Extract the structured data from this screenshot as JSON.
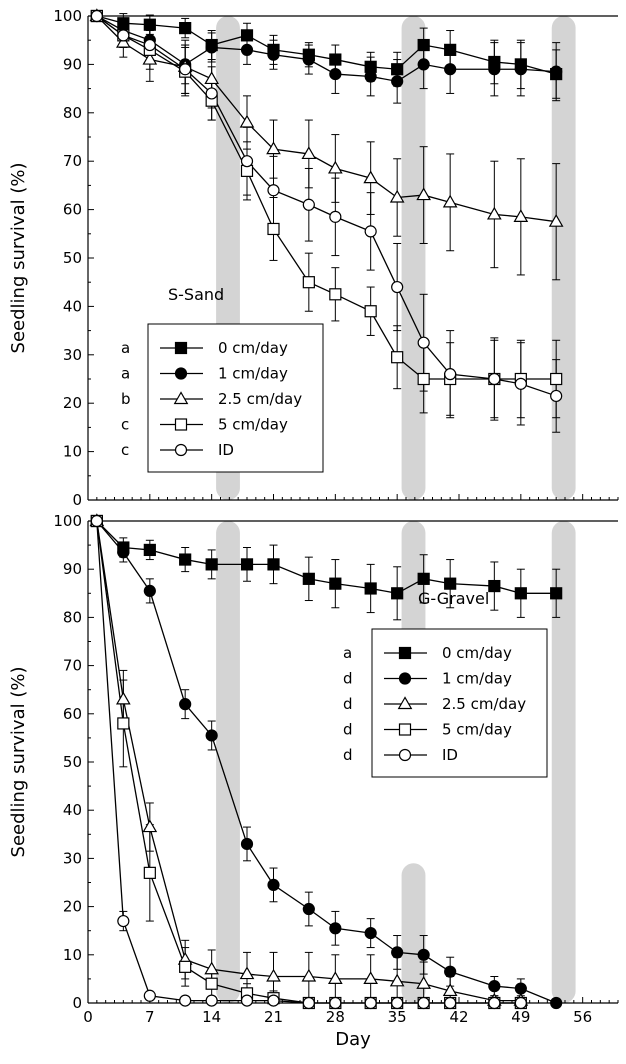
{
  "chart_data": [
    {
      "type": "line",
      "panel_label": "S-Sand",
      "ylabel": "Seedling survival (%)",
      "xlabel": "",
      "xlim": [
        0,
        60
      ],
      "ylim": [
        0,
        100
      ],
      "xticks": [
        0,
        7,
        14,
        21,
        28,
        35,
        42,
        49,
        56
      ],
      "yticks": [
        0,
        10,
        20,
        30,
        40,
        50,
        60,
        70,
        80,
        90,
        100
      ],
      "show_x_tick_labels": false,
      "shaded_periods": [
        {
          "x0": 14.5,
          "x1": 17.2,
          "y0": 0,
          "y1": 100
        },
        {
          "x0": 35.5,
          "x1": 38.2,
          "y0": 0,
          "y1": 100
        },
        {
          "x0": 52.5,
          "x1": 55.2,
          "y0": 0,
          "y1": 100
        }
      ],
      "legend_position": "lower-left",
      "series": [
        {
          "name": "0 cm/day",
          "letter": "a",
          "marker": "square",
          "fill": "#000000",
          "x": [
            1,
            4,
            7,
            11,
            14,
            18,
            21,
            25,
            28,
            32,
            35,
            38,
            41,
            46,
            49,
            53
          ],
          "y": [
            100,
            98.5,
            98.2,
            97.5,
            94,
            96,
            93,
            92,
            91,
            89.5,
            89,
            94,
            93,
            90.5,
            90,
            88
          ],
          "err": [
            0.5,
            2,
            2,
            2,
            3,
            2.5,
            3,
            2.5,
            3,
            3,
            3.5,
            3.5,
            4,
            4.5,
            5,
            5
          ]
        },
        {
          "name": "1 cm/day",
          "letter": "a",
          "marker": "circle",
          "fill": "#000000",
          "x": [
            1,
            4,
            7,
            11,
            14,
            18,
            21,
            25,
            28,
            32,
            35,
            38,
            41,
            46,
            49,
            53
          ],
          "y": [
            100,
            97,
            95,
            90,
            93.5,
            93,
            92,
            91,
            88,
            87.5,
            86.5,
            90,
            89,
            89,
            89,
            88.5
          ],
          "err": [
            0.5,
            2.5,
            3,
            4,
            3,
            3,
            3,
            3,
            4,
            4,
            4.5,
            5,
            5,
            5.5,
            5.5,
            6
          ]
        },
        {
          "name": "2.5 cm/day",
          "letter": "b",
          "marker": "triangle",
          "fill": "#ffffff",
          "x": [
            1,
            4,
            7,
            11,
            14,
            18,
            21,
            25,
            28,
            32,
            35,
            38,
            41,
            46,
            49,
            53
          ],
          "y": [
            100,
            94.5,
            91,
            89.5,
            87,
            78,
            72.5,
            71.5,
            68.5,
            66.5,
            62.5,
            63,
            61.5,
            59,
            58.5,
            57.5
          ],
          "err": [
            0.5,
            3,
            4.5,
            5.5,
            6,
            5.5,
            6,
            7,
            7,
            7.5,
            8,
            10,
            10,
            11,
            12,
            12
          ]
        },
        {
          "name": "5 cm/day",
          "letter": "c",
          "marker": "square",
          "fill": "#ffffff",
          "x": [
            1,
            4,
            7,
            11,
            14,
            18,
            21,
            25,
            28,
            32,
            35,
            38,
            41,
            46,
            49,
            53
          ],
          "y": [
            100,
            96,
            93,
            88.5,
            82.5,
            68,
            56,
            45,
            42.5,
            39,
            29.5,
            25,
            25,
            25,
            25,
            25
          ],
          "err": [
            0.5,
            2.5,
            4,
            5,
            4,
            6,
            6.5,
            6,
            5.5,
            5,
            6.5,
            7,
            7.5,
            8,
            8,
            8
          ]
        },
        {
          "name": "ID",
          "letter": "c",
          "marker": "circle",
          "fill": "#ffffff",
          "x": [
            1,
            4,
            7,
            11,
            14,
            18,
            21,
            25,
            28,
            32,
            35,
            38,
            41,
            46,
            49,
            53
          ],
          "y": [
            100,
            96,
            94,
            89,
            84,
            70,
            64,
            61,
            58.5,
            55.5,
            44,
            32.5,
            26,
            25,
            24,
            21.5
          ],
          "err": [
            0.5,
            2.5,
            3.5,
            5,
            5.5,
            7,
            7,
            7.5,
            8,
            8,
            9,
            10,
            9,
            8.5,
            8.5,
            7.5
          ]
        }
      ]
    },
    {
      "type": "line",
      "panel_label": "G-Gravel",
      "ylabel": "Seedling survival (%)",
      "xlabel": "Day",
      "xlim": [
        0,
        60
      ],
      "ylim": [
        0,
        100
      ],
      "xticks": [
        0,
        7,
        14,
        21,
        28,
        35,
        42,
        49,
        56
      ],
      "yticks": [
        0,
        10,
        20,
        30,
        40,
        50,
        60,
        70,
        80,
        90,
        100
      ],
      "show_x_tick_labels": true,
      "shaded_periods": [
        {
          "x0": 14.5,
          "x1": 17.2,
          "y0": 0,
          "y1": 100
        },
        {
          "x0": 35.5,
          "x1": 38.2,
          "y0": 0,
          "y1": 29
        },
        {
          "x0": 35.5,
          "x1": 38.2,
          "y0": 72,
          "y1": 100
        },
        {
          "x0": 52.5,
          "x1": 55.2,
          "y0": 0,
          "y1": 100
        }
      ],
      "legend_position": "lower-right",
      "series": [
        {
          "name": "0 cm/day",
          "letter": "a",
          "marker": "square",
          "fill": "#000000",
          "x": [
            1,
            4,
            7,
            11,
            14,
            18,
            21,
            25,
            28,
            32,
            35,
            38,
            41,
            46,
            49,
            53
          ],
          "y": [
            100,
            94.5,
            94,
            92,
            91,
            91,
            91,
            88,
            87,
            86,
            85,
            88,
            87,
            86.5,
            85,
            85
          ],
          "err": [
            0.5,
            2,
            2,
            2.5,
            3,
            3.5,
            4,
            4.5,
            5,
            5,
            5.5,
            5,
            5,
            5,
            5,
            5
          ]
        },
        {
          "name": "1 cm/day",
          "letter": "d",
          "marker": "circle",
          "fill": "#000000",
          "x": [
            1,
            4,
            7,
            11,
            14,
            18,
            21,
            25,
            28,
            32,
            35,
            38,
            41,
            46,
            49,
            53
          ],
          "y": [
            100,
            93.5,
            85.5,
            62,
            55.5,
            33,
            24.5,
            19.5,
            15.5,
            14.5,
            10.5,
            10,
            6.5,
            3.5,
            3,
            0
          ],
          "err": [
            0.5,
            2,
            2.5,
            3,
            3,
            3.5,
            3.5,
            3.5,
            3.5,
            3,
            3.5,
            4,
            3,
            2,
            2,
            0.5
          ]
        },
        {
          "name": "2.5 cm/day",
          "letter": "d",
          "marker": "triangle",
          "fill": "#ffffff",
          "x": [
            1,
            4,
            7,
            11,
            14,
            18,
            21,
            25,
            28,
            32,
            35,
            38,
            41,
            46,
            49
          ],
          "y": [
            100,
            63,
            36.5,
            9,
            7,
            6,
            5.5,
            5.5,
            5,
            5,
            4.5,
            4,
            2.5,
            0.5,
            0.5
          ],
          "err": [
            0.5,
            6,
            5,
            4,
            4,
            4.5,
            5,
            5,
            5,
            5,
            5,
            4.5,
            3,
            1,
            1
          ]
        },
        {
          "name": "5 cm/day",
          "letter": "d",
          "marker": "square",
          "fill": "#ffffff",
          "x": [
            1,
            4,
            7,
            11,
            14,
            18,
            21,
            25,
            28,
            32,
            35,
            38,
            41,
            46,
            49
          ],
          "y": [
            100,
            58,
            27,
            7.5,
            4,
            2,
            1,
            0,
            0,
            0,
            0,
            0,
            0,
            0,
            0
          ],
          "err": [
            0.5,
            9,
            10,
            4,
            3,
            2,
            1.5,
            0.5,
            0.5,
            0.5,
            0.5,
            0.5,
            0.5,
            0.5,
            0.5
          ]
        },
        {
          "name": "ID",
          "letter": "d",
          "marker": "circle",
          "fill": "#ffffff",
          "x": [
            1,
            4,
            7,
            11,
            14,
            18,
            21,
            25,
            28,
            32,
            35,
            38,
            41,
            46,
            49
          ],
          "y": [
            100,
            17,
            1.5,
            0.5,
            0.5,
            0.5,
            0.5,
            0,
            0,
            0,
            0,
            0,
            0,
            0,
            0
          ],
          "err": [
            0.5,
            2,
            0.5,
            0.5,
            0.5,
            0.5,
            0.5,
            0.5,
            0.5,
            0.5,
            0.5,
            0.5,
            0.5,
            0.5,
            0.5
          ]
        }
      ]
    }
  ]
}
